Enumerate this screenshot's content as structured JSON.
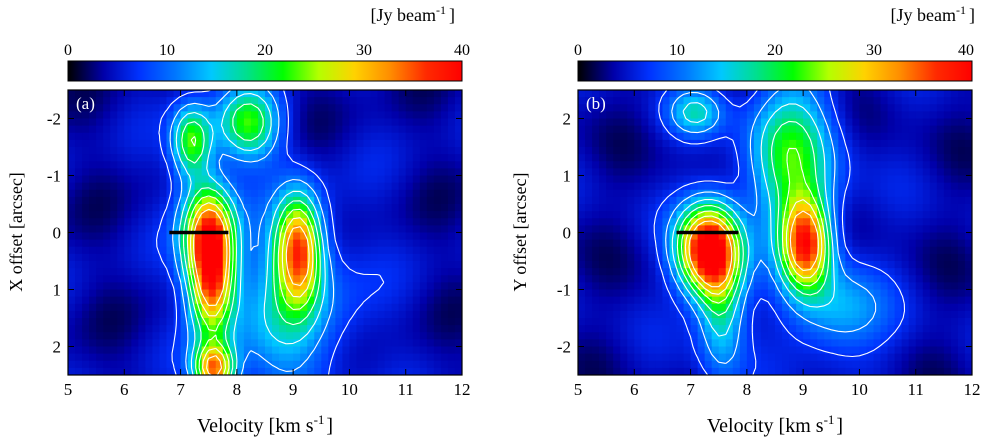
{
  "colorbar": {
    "unit_label": "[Jy beam",
    "unit_exponent": "-1",
    "unit_close": "]",
    "range": [
      0,
      40
    ],
    "ticks": [
      "0",
      "10",
      "20",
      "30",
      "40"
    ],
    "colors": [
      "#000000",
      "#0000aa",
      "#0033ff",
      "#0077ff",
      "#00c8ff",
      "#00e08c",
      "#00ff00",
      "#b4ff00",
      "#ffd200",
      "#ff8c00",
      "#ff2a00",
      "#ff0000"
    ]
  },
  "chart_data": [
    {
      "type": "heatmap",
      "panel_label": "(a)",
      "xlabel": "Velocity [km s",
      "xlabel_exponent": "-1",
      "xlabel_close": "]",
      "ylabel": "X offset [arcsec]",
      "xlim": [
        5,
        12
      ],
      "ylim_top_to_bottom": [
        -2.5,
        2.5
      ],
      "xticks": [
        5,
        6,
        7,
        8,
        9,
        10,
        11,
        12
      ],
      "xtick_labels": [
        "5",
        "6",
        "7",
        "8",
        "9",
        "10",
        "11",
        "12"
      ],
      "yticks": [
        -2,
        -1,
        0,
        1,
        2
      ],
      "ytick_labels": [
        "-2",
        "-1",
        "0",
        "1",
        "2"
      ],
      "background_level": 4,
      "emission_components": [
        {
          "velocity": 7.55,
          "offset": 0.7,
          "peak": 33,
          "v_sigma": 0.28,
          "y_sigma": 0.8
        },
        {
          "velocity": 7.45,
          "offset": -0.1,
          "peak": 16,
          "v_sigma": 0.35,
          "y_sigma": 0.6
        },
        {
          "velocity": 9.1,
          "offset": 0.3,
          "peak": 28,
          "v_sigma": 0.28,
          "y_sigma": 0.65
        },
        {
          "velocity": 7.2,
          "offset": -1.6,
          "peak": 19,
          "v_sigma": 0.25,
          "y_sigma": 0.45
        },
        {
          "velocity": 8.2,
          "offset": -1.9,
          "peak": 18,
          "v_sigma": 0.4,
          "y_sigma": 0.45
        },
        {
          "velocity": 7.6,
          "offset": 2.4,
          "peak": 26,
          "v_sigma": 0.25,
          "y_sigma": 0.3
        },
        {
          "velocity": 8.9,
          "offset": 1.4,
          "peak": 10,
          "v_sigma": 0.8,
          "y_sigma": 1.2
        }
      ],
      "marker_bar": {
        "x_from": 6.8,
        "x_to": 7.85,
        "y": 0
      }
    },
    {
      "type": "heatmap",
      "panel_label": "(b)",
      "xlabel": "Velocity [km s",
      "xlabel_exponent": "-1",
      "xlabel_close": "]",
      "ylabel": "Y offset [arcsec]",
      "xlim": [
        5,
        12
      ],
      "ylim_top_to_bottom": [
        2.5,
        -2.5
      ],
      "xticks": [
        5,
        6,
        7,
        8,
        9,
        10,
        11,
        12
      ],
      "xtick_labels": [
        "5",
        "6",
        "7",
        "8",
        "9",
        "10",
        "11",
        "12"
      ],
      "yticks": [
        2,
        1,
        0,
        -1,
        -2
      ],
      "ytick_labels": [
        "2",
        "1",
        "0",
        "-1",
        "-2"
      ],
      "background_level": 4,
      "emission_components": [
        {
          "velocity": 7.3,
          "offset": -0.3,
          "peak": 36,
          "v_sigma": 0.38,
          "y_sigma": 0.55
        },
        {
          "velocity": 7.55,
          "offset": -1.2,
          "peak": 14,
          "v_sigma": 0.3,
          "y_sigma": 0.9
        },
        {
          "velocity": 9.05,
          "offset": -0.2,
          "peak": 30,
          "v_sigma": 0.3,
          "y_sigma": 0.55
        },
        {
          "velocity": 8.8,
          "offset": 1.3,
          "peak": 17,
          "v_sigma": 0.55,
          "y_sigma": 1.0
        },
        {
          "velocity": 7.1,
          "offset": 2.1,
          "peak": 11,
          "v_sigma": 0.35,
          "y_sigma": 0.3
        },
        {
          "velocity": 9.6,
          "offset": -1.4,
          "peak": 10,
          "v_sigma": 0.6,
          "y_sigma": 0.6
        }
      ],
      "marker_bar": {
        "x_from": 6.75,
        "x_to": 7.85,
        "y": 0
      }
    }
  ]
}
